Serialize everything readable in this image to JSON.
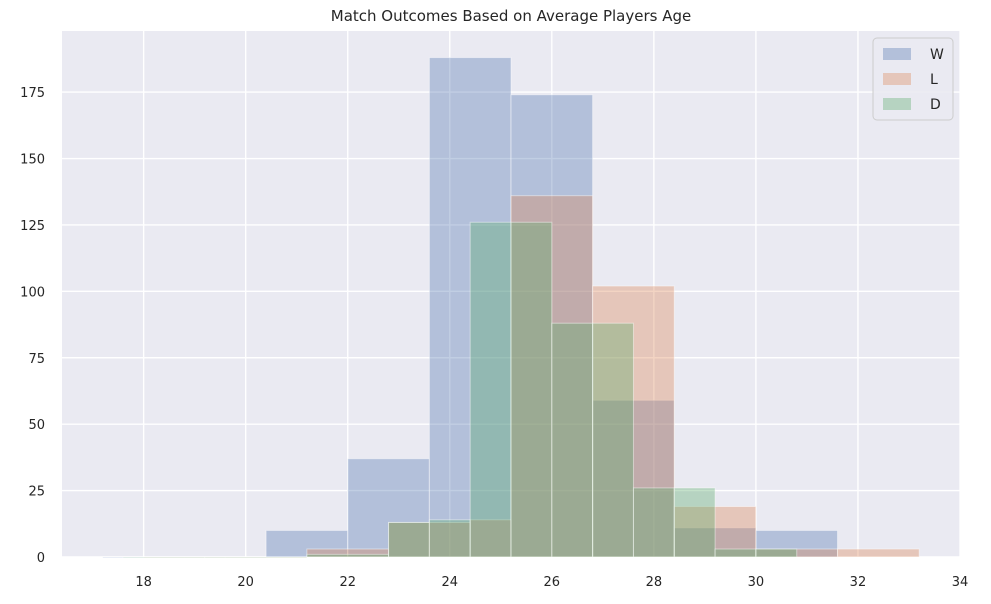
{
  "chart_data": {
    "type": "histogram",
    "title": "Match Outcomes Based on Average Players Age",
    "xlabel": "",
    "ylabel": "",
    "xlim": [
      16.4,
      34
    ],
    "ylim": [
      0,
      198
    ],
    "xticks": [
      18,
      20,
      22,
      24,
      26,
      28,
      30,
      32,
      34
    ],
    "yticks": [
      0,
      25,
      50,
      75,
      100,
      125,
      150,
      175
    ],
    "grid": true,
    "legend_position": "top-right",
    "series": [
      {
        "name": "W",
        "color": "#4c72b0",
        "opacity": 0.35,
        "bins": [
          {
            "x0": 17.2,
            "x1": 18.8,
            "count": 0
          },
          {
            "x0": 18.8,
            "x1": 20.4,
            "count": 0
          },
          {
            "x0": 20.4,
            "x1": 22.0,
            "count": 10
          },
          {
            "x0": 22.0,
            "x1": 23.6,
            "count": 37
          },
          {
            "x0": 23.6,
            "x1": 25.2,
            "count": 188
          },
          {
            "x0": 25.2,
            "x1": 26.8,
            "count": 174
          },
          {
            "x0": 26.8,
            "x1": 28.4,
            "count": 59
          },
          {
            "x0": 28.4,
            "x1": 30.0,
            "count": 11
          },
          {
            "x0": 30.0,
            "x1": 31.6,
            "count": 10
          }
        ]
      },
      {
        "name": "L",
        "color": "#dd8452",
        "opacity": 0.35,
        "bins": [
          {
            "x0": 18.0,
            "x1": 19.6,
            "count": 0
          },
          {
            "x0": 19.6,
            "x1": 21.2,
            "count": 0
          },
          {
            "x0": 21.2,
            "x1": 22.8,
            "count": 3
          },
          {
            "x0": 22.8,
            "x1": 24.4,
            "count": 13
          },
          {
            "x0": 24.4,
            "x1": 25.2,
            "count": 14
          },
          {
            "x0": 25.2,
            "x1": 26.8,
            "count": 136
          },
          {
            "x0": 26.8,
            "x1": 28.4,
            "count": 102
          },
          {
            "x0": 28.4,
            "x1": 30.0,
            "count": 19
          },
          {
            "x0": 30.0,
            "x1": 31.6,
            "count": 3
          },
          {
            "x0": 31.6,
            "x1": 33.2,
            "count": 3
          }
        ]
      },
      {
        "name": "D",
        "color": "#55a868",
        "opacity": 0.35,
        "bins": [
          {
            "x0": 17.6,
            "x1": 19.2,
            "count": 0
          },
          {
            "x0": 19.2,
            "x1": 21.2,
            "count": 0
          },
          {
            "x0": 21.2,
            "x1": 22.8,
            "count": 1
          },
          {
            "x0": 22.8,
            "x1": 23.6,
            "count": 13
          },
          {
            "x0": 23.6,
            "x1": 24.4,
            "count": 14
          },
          {
            "x0": 24.4,
            "x1": 25.2,
            "count": 126
          },
          {
            "x0": 25.2,
            "x1": 26.0,
            "count": 126
          },
          {
            "x0": 26.0,
            "x1": 26.8,
            "count": 88
          },
          {
            "x0": 26.8,
            "x1": 27.6,
            "count": 88
          },
          {
            "x0": 27.6,
            "x1": 28.4,
            "count": 26
          },
          {
            "x0": 28.4,
            "x1": 29.2,
            "count": 26
          },
          {
            "x0": 29.2,
            "x1": 30.0,
            "count": 3
          },
          {
            "x0": 30.0,
            "x1": 30.8,
            "count": 3
          }
        ]
      }
    ]
  }
}
